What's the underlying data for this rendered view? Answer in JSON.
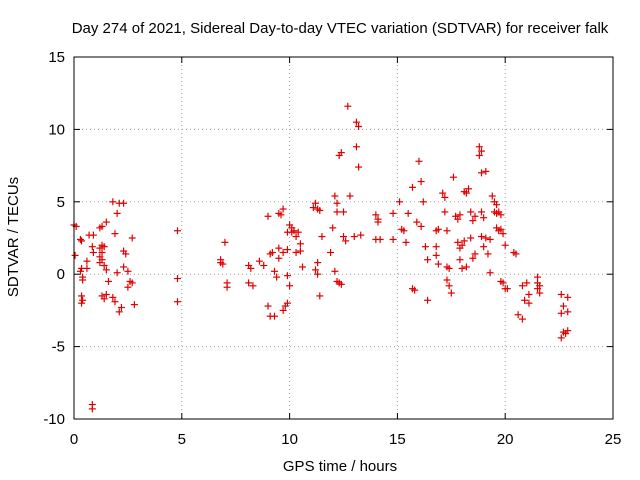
{
  "chart_data": {
    "type": "scatter",
    "title": "Day 274 of 2021, Sidereal Day-to-day VTEC variation (SDTVAR) for receiver falk",
    "xlabel": "GPS time / hours",
    "ylabel": "SDTVAR / TECUs",
    "xlim": [
      0,
      25
    ],
    "ylim": [
      -10,
      15
    ],
    "xticks": [
      0,
      5,
      10,
      15,
      20,
      25
    ],
    "yticks": [
      -10,
      -5,
      0,
      5,
      10,
      15
    ],
    "xtick_labels": [
      "0",
      "5",
      "10",
      "15",
      "20",
      "25"
    ],
    "ytick_labels": [
      "-10",
      "-5",
      "0",
      "5",
      "10",
      "15"
    ],
    "grid": true,
    "marker": "plus",
    "color": "#e00000",
    "series": [
      {
        "name": "SDTVAR",
        "points": [
          [
            0.0,
            3.4
          ],
          [
            0.1,
            3.3
          ],
          [
            0.05,
            1.3
          ],
          [
            0.3,
            2.4
          ],
          [
            0.35,
            2.3
          ],
          [
            0.35,
            0.4
          ],
          [
            0.3,
            0.2
          ],
          [
            0.4,
            -0.2
          ],
          [
            0.4,
            -0.4
          ],
          [
            0.35,
            -1.5
          ],
          [
            0.4,
            -1.8
          ],
          [
            0.35,
            -2.0
          ],
          [
            0.6,
            0.9
          ],
          [
            0.7,
            2.7
          ],
          [
            0.9,
            2.7
          ],
          [
            0.6,
            0.4
          ],
          [
            0.85,
            1.9
          ],
          [
            0.9,
            1.5
          ],
          [
            0.85,
            -9.0
          ],
          [
            0.85,
            -9.3
          ],
          [
            1.2,
            1.8
          ],
          [
            1.3,
            1.5
          ],
          [
            1.2,
            1.2
          ],
          [
            1.3,
            1.0
          ],
          [
            1.2,
            0.8
          ],
          [
            1.3,
            2.0
          ],
          [
            1.4,
            1.9
          ],
          [
            1.2,
            3.2
          ],
          [
            1.3,
            3.3
          ],
          [
            1.5,
            3.6
          ],
          [
            1.4,
            0.6
          ],
          [
            1.5,
            0.3
          ],
          [
            1.3,
            -1.5
          ],
          [
            1.4,
            -1.7
          ],
          [
            1.5,
            -1.4
          ],
          [
            1.6,
            -0.5
          ],
          [
            1.8,
            -1.6
          ],
          [
            1.9,
            -1.9
          ],
          [
            1.9,
            2.8
          ],
          [
            1.8,
            5.0
          ],
          [
            2.0,
            4.2
          ],
          [
            2.1,
            4.9
          ],
          [
            2.3,
            4.9
          ],
          [
            2.0,
            0.1
          ],
          [
            2.2,
            -2.3
          ],
          [
            2.1,
            -2.6
          ],
          [
            2.3,
            1.6
          ],
          [
            2.4,
            1.4
          ],
          [
            2.3,
            0.5
          ],
          [
            2.5,
            0.2
          ],
          [
            2.5,
            -0.9
          ],
          [
            2.6,
            -0.5
          ],
          [
            2.7,
            -0.6
          ],
          [
            2.7,
            2.5
          ],
          [
            2.8,
            -2.1
          ],
          [
            4.8,
            3.0
          ],
          [
            4.8,
            -0.3
          ],
          [
            4.8,
            -1.9
          ],
          [
            6.8,
            1.0
          ],
          [
            6.8,
            0.8
          ],
          [
            6.9,
            0.7
          ],
          [
            7.0,
            2.2
          ],
          [
            7.1,
            -0.6
          ],
          [
            7.1,
            -0.9
          ],
          [
            8.1,
            0.6
          ],
          [
            8.2,
            0.4
          ],
          [
            8.1,
            -0.6
          ],
          [
            8.3,
            -0.8
          ],
          [
            8.6,
            0.9
          ],
          [
            8.8,
            0.6
          ],
          [
            9.0,
            4.0
          ],
          [
            9.1,
            1.4
          ],
          [
            9.0,
            -2.2
          ],
          [
            9.1,
            -2.9
          ],
          [
            9.3,
            -2.9
          ],
          [
            9.3,
            0.2
          ],
          [
            9.4,
            -0.2
          ],
          [
            9.2,
            1.5
          ],
          [
            9.5,
            1.8
          ],
          [
            9.5,
            1.1
          ],
          [
            9.5,
            4.2
          ],
          [
            9.6,
            4.1
          ],
          [
            9.7,
            4.5
          ],
          [
            9.7,
            1.5
          ],
          [
            9.7,
            -2.5
          ],
          [
            9.8,
            -2.2
          ],
          [
            9.9,
            -2.0
          ],
          [
            9.9,
            -0.1
          ],
          [
            9.9,
            1.7
          ],
          [
            9.9,
            2.9
          ],
          [
            10.0,
            3.4
          ],
          [
            10.1,
            3.2
          ],
          [
            10.1,
            2.9
          ],
          [
            10.2,
            3.0
          ],
          [
            10.3,
            2.6
          ],
          [
            10.4,
            2.9
          ],
          [
            10.5,
            2.1
          ],
          [
            10.6,
            0.5
          ],
          [
            10.3,
            1.5
          ],
          [
            10.5,
            1.6
          ],
          [
            10.0,
            -0.8
          ],
          [
            11.1,
            4.6
          ],
          [
            11.2,
            4.9
          ],
          [
            11.3,
            4.5
          ],
          [
            11.4,
            4.4
          ],
          [
            11.2,
            0.3
          ],
          [
            11.3,
            0.0
          ],
          [
            11.3,
            0.8
          ],
          [
            11.4,
            -1.5
          ],
          [
            11.5,
            2.6
          ],
          [
            11.9,
            1.5
          ],
          [
            12.0,
            3.2
          ],
          [
            12.1,
            5.4
          ],
          [
            12.2,
            4.9
          ],
          [
            12.2,
            4.3
          ],
          [
            12.3,
            8.2
          ],
          [
            12.4,
            8.4
          ],
          [
            12.5,
            2.6
          ],
          [
            12.5,
            4.3
          ],
          [
            12.6,
            2.3
          ],
          [
            12.2,
            -0.5
          ],
          [
            12.3,
            -0.6
          ],
          [
            12.4,
            -0.7
          ],
          [
            12.1,
            0.2
          ],
          [
            12.7,
            11.6
          ],
          [
            12.8,
            5.4
          ],
          [
            13.0,
            2.6
          ],
          [
            13.1,
            10.5
          ],
          [
            13.2,
            10.2
          ],
          [
            13.1,
            8.8
          ],
          [
            13.2,
            7.4
          ],
          [
            13.3,
            2.7
          ],
          [
            14.0,
            4.1
          ],
          [
            14.1,
            3.8
          ],
          [
            14.1,
            3.6
          ],
          [
            14.0,
            2.4
          ],
          [
            14.2,
            2.4
          ],
          [
            14.8,
            4.2
          ],
          [
            14.8,
            2.4
          ],
          [
            15.1,
            5.0
          ],
          [
            15.2,
            3.1
          ],
          [
            15.3,
            3.0
          ],
          [
            15.5,
            4.2
          ],
          [
            15.4,
            2.2
          ],
          [
            15.7,
            6.0
          ],
          [
            15.7,
            -1.0
          ],
          [
            15.8,
            -1.1
          ],
          [
            15.9,
            3.6
          ],
          [
            16.0,
            7.8
          ],
          [
            16.1,
            6.4
          ],
          [
            16.2,
            5.0
          ],
          [
            16.1,
            3.3
          ],
          [
            16.3,
            1.9
          ],
          [
            16.4,
            1.0
          ],
          [
            16.4,
            -1.8
          ],
          [
            16.8,
            3.0
          ],
          [
            16.9,
            3.1
          ],
          [
            16.8,
            1.9
          ],
          [
            16.8,
            1.3
          ],
          [
            16.9,
            0.7
          ],
          [
            17.1,
            5.6
          ],
          [
            17.2,
            5.3
          ],
          [
            17.2,
            4.3
          ],
          [
            17.3,
            3.0
          ],
          [
            17.3,
            0.5
          ],
          [
            17.4,
            0.4
          ],
          [
            17.3,
            -0.4
          ],
          [
            17.4,
            -0.8
          ],
          [
            17.5,
            -1.3
          ],
          [
            17.6,
            6.7
          ],
          [
            17.7,
            4.0
          ],
          [
            17.8,
            3.8
          ],
          [
            17.9,
            4.1
          ],
          [
            17.8,
            2.2
          ],
          [
            17.9,
            1.8
          ],
          [
            17.9,
            1.0
          ],
          [
            18.0,
            2.0
          ],
          [
            18.1,
            2.3
          ],
          [
            18.0,
            0.4
          ],
          [
            18.2,
            0.5
          ],
          [
            18.1,
            5.7
          ],
          [
            18.2,
            5.6
          ],
          [
            18.3,
            5.9
          ],
          [
            18.4,
            4.3
          ],
          [
            18.5,
            3.7
          ],
          [
            18.4,
            2.5
          ],
          [
            18.6,
            4.0
          ],
          [
            18.6,
            1.4
          ],
          [
            18.5,
            1.1
          ],
          [
            18.8,
            8.8
          ],
          [
            18.9,
            8.5
          ],
          [
            18.8,
            8.2
          ],
          [
            18.9,
            7.0
          ],
          [
            19.1,
            7.1
          ],
          [
            18.9,
            4.3
          ],
          [
            19.0,
            3.9
          ],
          [
            18.9,
            2.6
          ],
          [
            19.0,
            1.9
          ],
          [
            19.1,
            2.5
          ],
          [
            19.3,
            2.4
          ],
          [
            19.2,
            1.4
          ],
          [
            19.3,
            0.1
          ],
          [
            19.4,
            5.4
          ],
          [
            19.5,
            5.0
          ],
          [
            19.6,
            4.8
          ],
          [
            19.5,
            4.3
          ],
          [
            19.6,
            4.2
          ],
          [
            19.7,
            4.3
          ],
          [
            19.8,
            4.1
          ],
          [
            19.6,
            3.2
          ],
          [
            19.7,
            3.0
          ],
          [
            19.8,
            3.1
          ],
          [
            19.9,
            2.8
          ],
          [
            19.8,
            -0.5
          ],
          [
            19.9,
            -0.6
          ],
          [
            20.0,
            -1.0
          ],
          [
            20.1,
            -1.0
          ],
          [
            20.0,
            2.0
          ],
          [
            20.4,
            1.5
          ],
          [
            20.5,
            1.4
          ],
          [
            20.6,
            -2.8
          ],
          [
            20.8,
            -3.1
          ],
          [
            20.8,
            -0.8
          ],
          [
            20.9,
            -1.8
          ],
          [
            21.0,
            -0.6
          ],
          [
            21.1,
            -1.4
          ],
          [
            21.1,
            -2.0
          ],
          [
            21.5,
            -0.2
          ],
          [
            21.5,
            -0.6
          ],
          [
            21.6,
            -0.8
          ],
          [
            21.5,
            -1.0
          ],
          [
            21.6,
            -1.3
          ],
          [
            22.6,
            -1.4
          ],
          [
            22.7,
            -2.2
          ],
          [
            22.6,
            -2.7
          ],
          [
            22.6,
            -4.4
          ],
          [
            22.7,
            -4.0
          ],
          [
            22.8,
            -4.1
          ],
          [
            22.9,
            -3.9
          ],
          [
            22.9,
            -2.6
          ],
          [
            22.9,
            -1.6
          ]
        ]
      }
    ]
  }
}
